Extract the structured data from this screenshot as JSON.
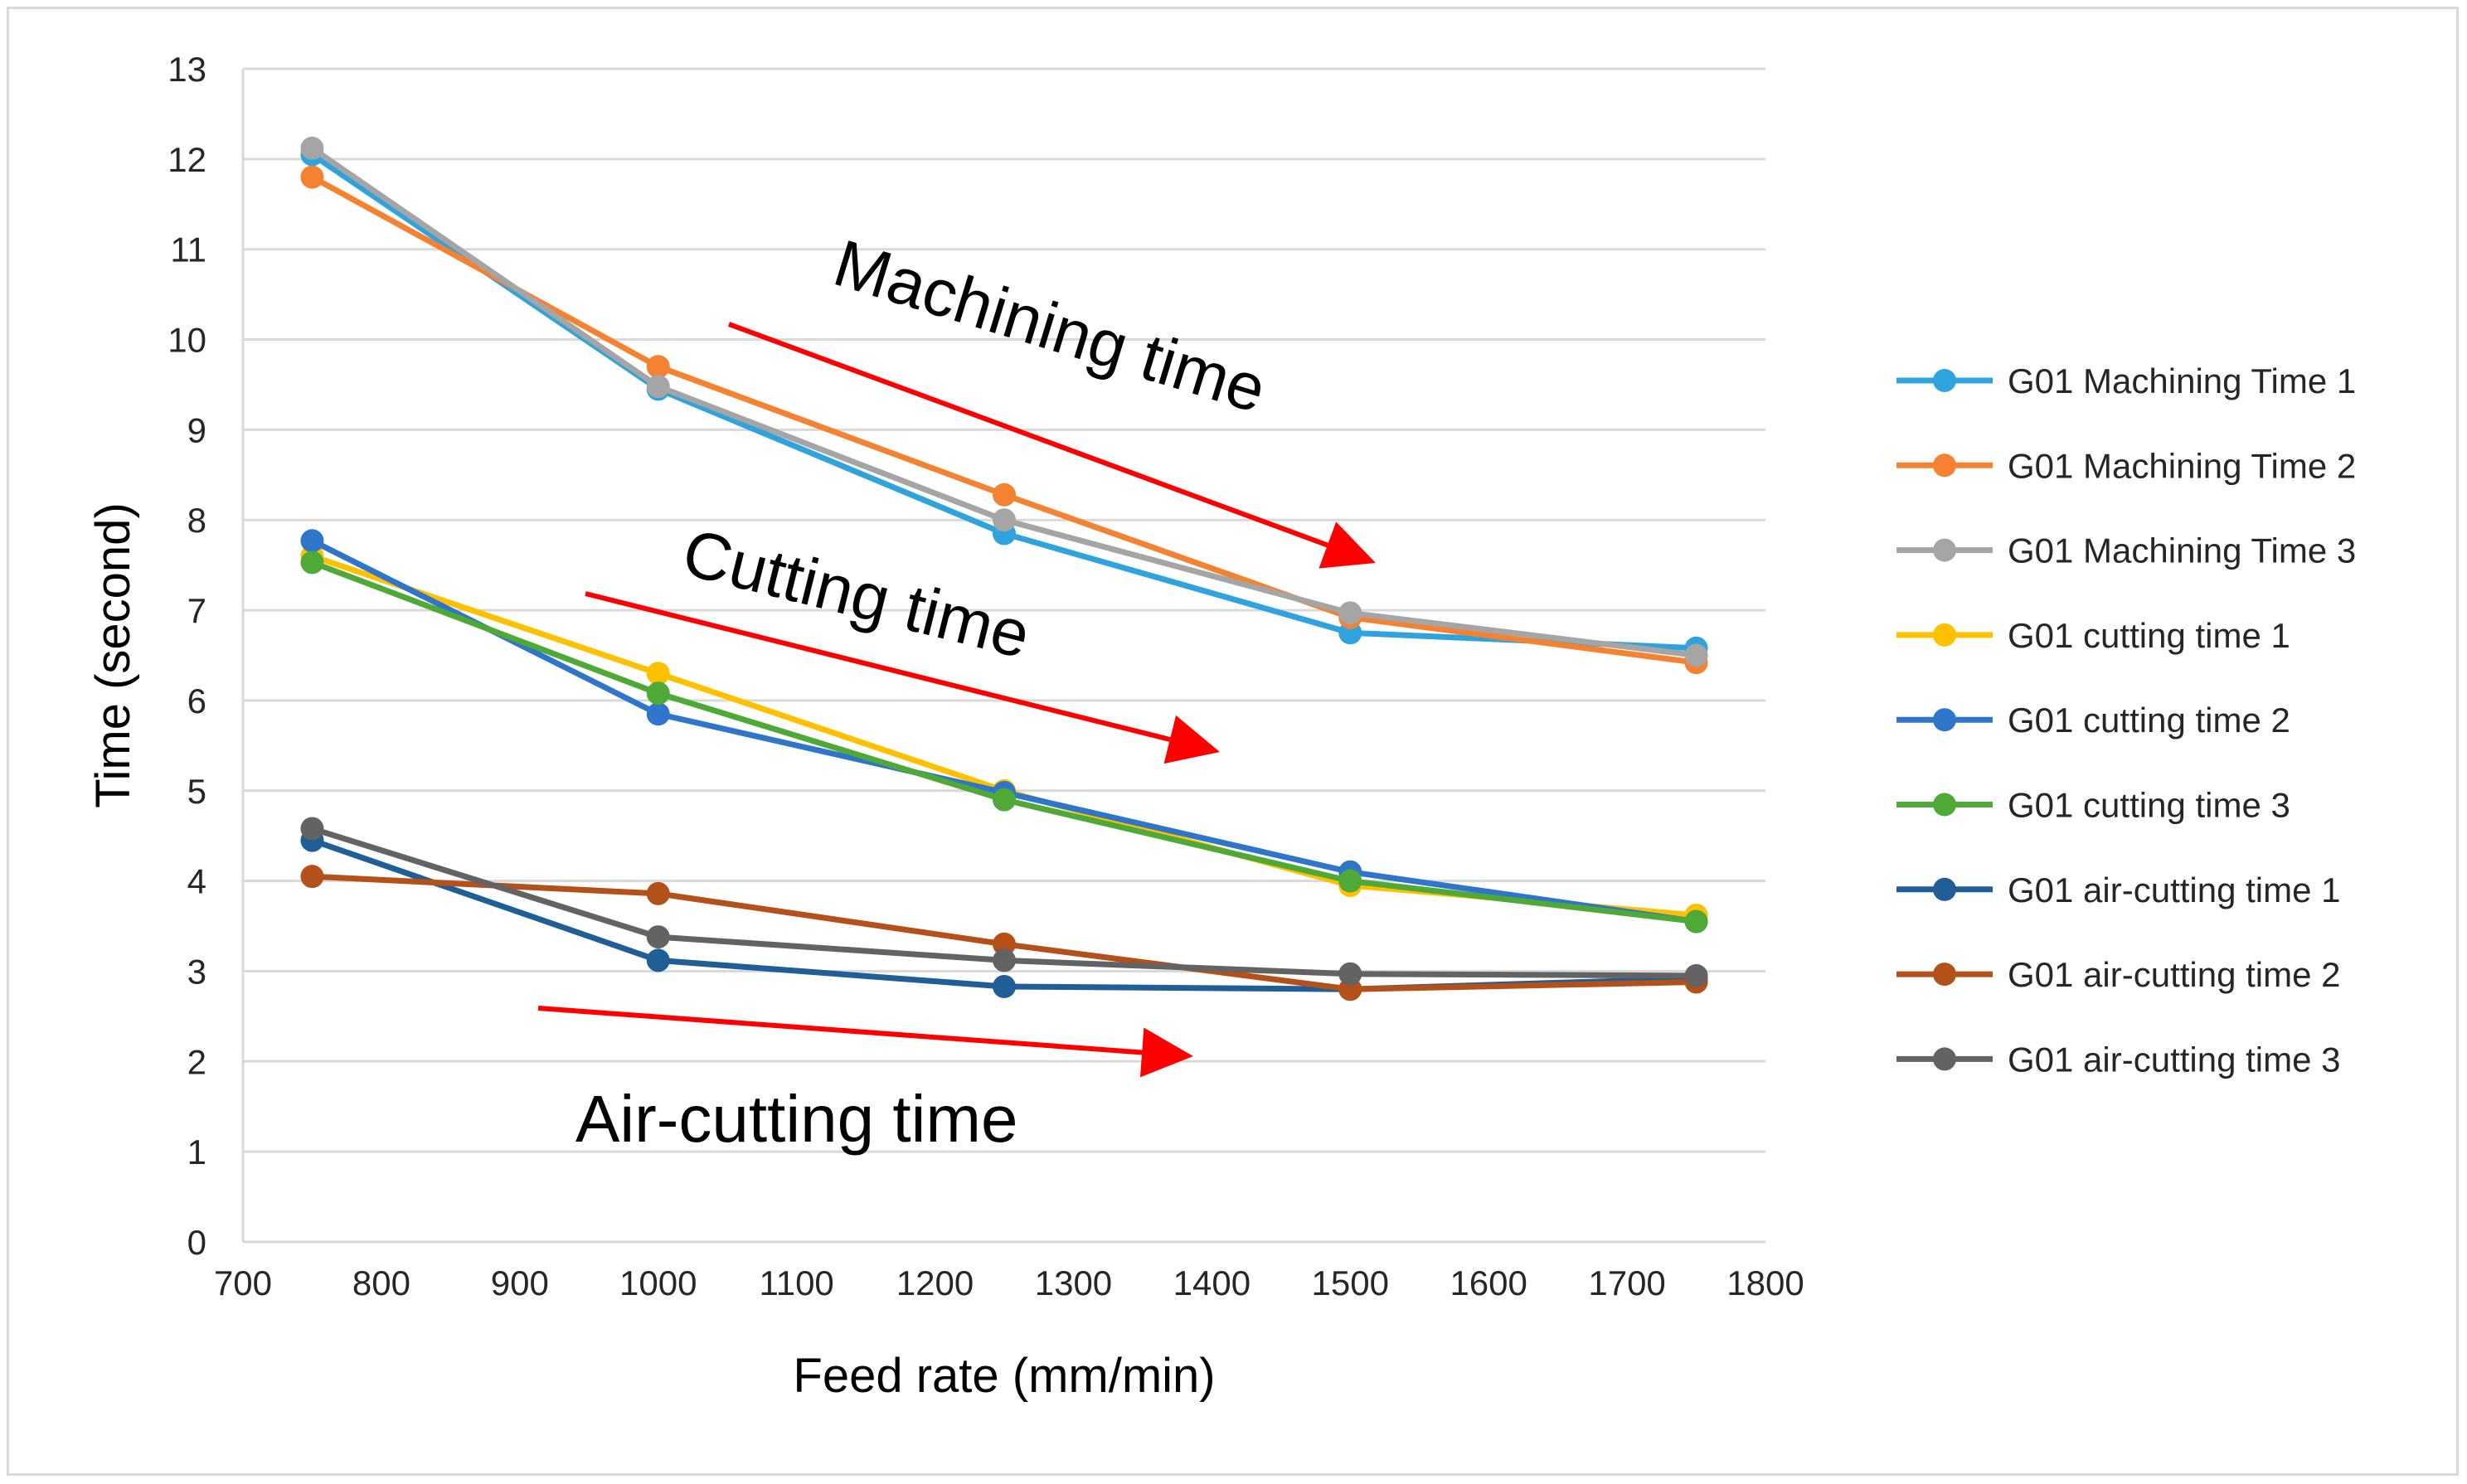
{
  "chart_data": {
    "type": "line",
    "title": "",
    "xlabel": "Feed rate (mm/min)",
    "ylabel": "Time (second)",
    "xlim": [
      700,
      1800
    ],
    "ylim": [
      0,
      13
    ],
    "x_ticks": [
      700,
      800,
      900,
      1000,
      1100,
      1200,
      1300,
      1400,
      1500,
      1600,
      1700,
      1800
    ],
    "y_ticks": [
      0,
      1,
      2,
      3,
      4,
      5,
      6,
      7,
      8,
      9,
      10,
      11,
      12,
      13
    ],
    "grid": "horizontal",
    "legend_position": "right",
    "x": [
      750,
      1000,
      1250,
      1500,
      1750
    ],
    "series": [
      {
        "name": "G01 Machining Time 1",
        "color": "#2EA3DD",
        "values": [
          12.05,
          9.45,
          7.85,
          6.75,
          6.58
        ]
      },
      {
        "name": "G01 Machining Time 2",
        "color": "#F58231",
        "values": [
          11.8,
          9.7,
          8.28,
          6.92,
          6.42
        ]
      },
      {
        "name": "G01 Machining Time 3",
        "color": "#A5A5A5",
        "values": [
          12.12,
          9.48,
          8.0,
          6.97,
          6.5
        ]
      },
      {
        "name": "G01 cutting time 1",
        "color": "#FFC000",
        "values": [
          7.6,
          6.3,
          5.0,
          3.95,
          3.62
        ]
      },
      {
        "name": "G01 cutting time 2",
        "color": "#2F75C9",
        "values": [
          7.77,
          5.85,
          4.98,
          4.1,
          3.55
        ]
      },
      {
        "name": "G01 cutting time 3",
        "color": "#4EA937",
        "values": [
          7.53,
          6.08,
          4.9,
          4.0,
          3.55
        ]
      },
      {
        "name": "G01 air-cutting time 1",
        "color": "#1F5E96",
        "values": [
          4.45,
          3.12,
          2.83,
          2.8,
          2.92
        ]
      },
      {
        "name": "G01 air-cutting time 2",
        "color": "#B4501A",
        "values": [
          4.05,
          3.86,
          3.3,
          2.8,
          2.88
        ]
      },
      {
        "name": "G01 air-cutting time 3",
        "color": "#636363",
        "values": [
          4.58,
          3.38,
          3.12,
          2.97,
          2.95
        ]
      }
    ],
    "annotations": [
      {
        "id": "machining",
        "text": "Machining time",
        "arrow_color": "#FF0000"
      },
      {
        "id": "cutting",
        "text": "Cutting time",
        "arrow_color": "#FF0000"
      },
      {
        "id": "aircutting",
        "text": "Air-cutting time",
        "arrow_color": "#FF0000"
      }
    ]
  }
}
